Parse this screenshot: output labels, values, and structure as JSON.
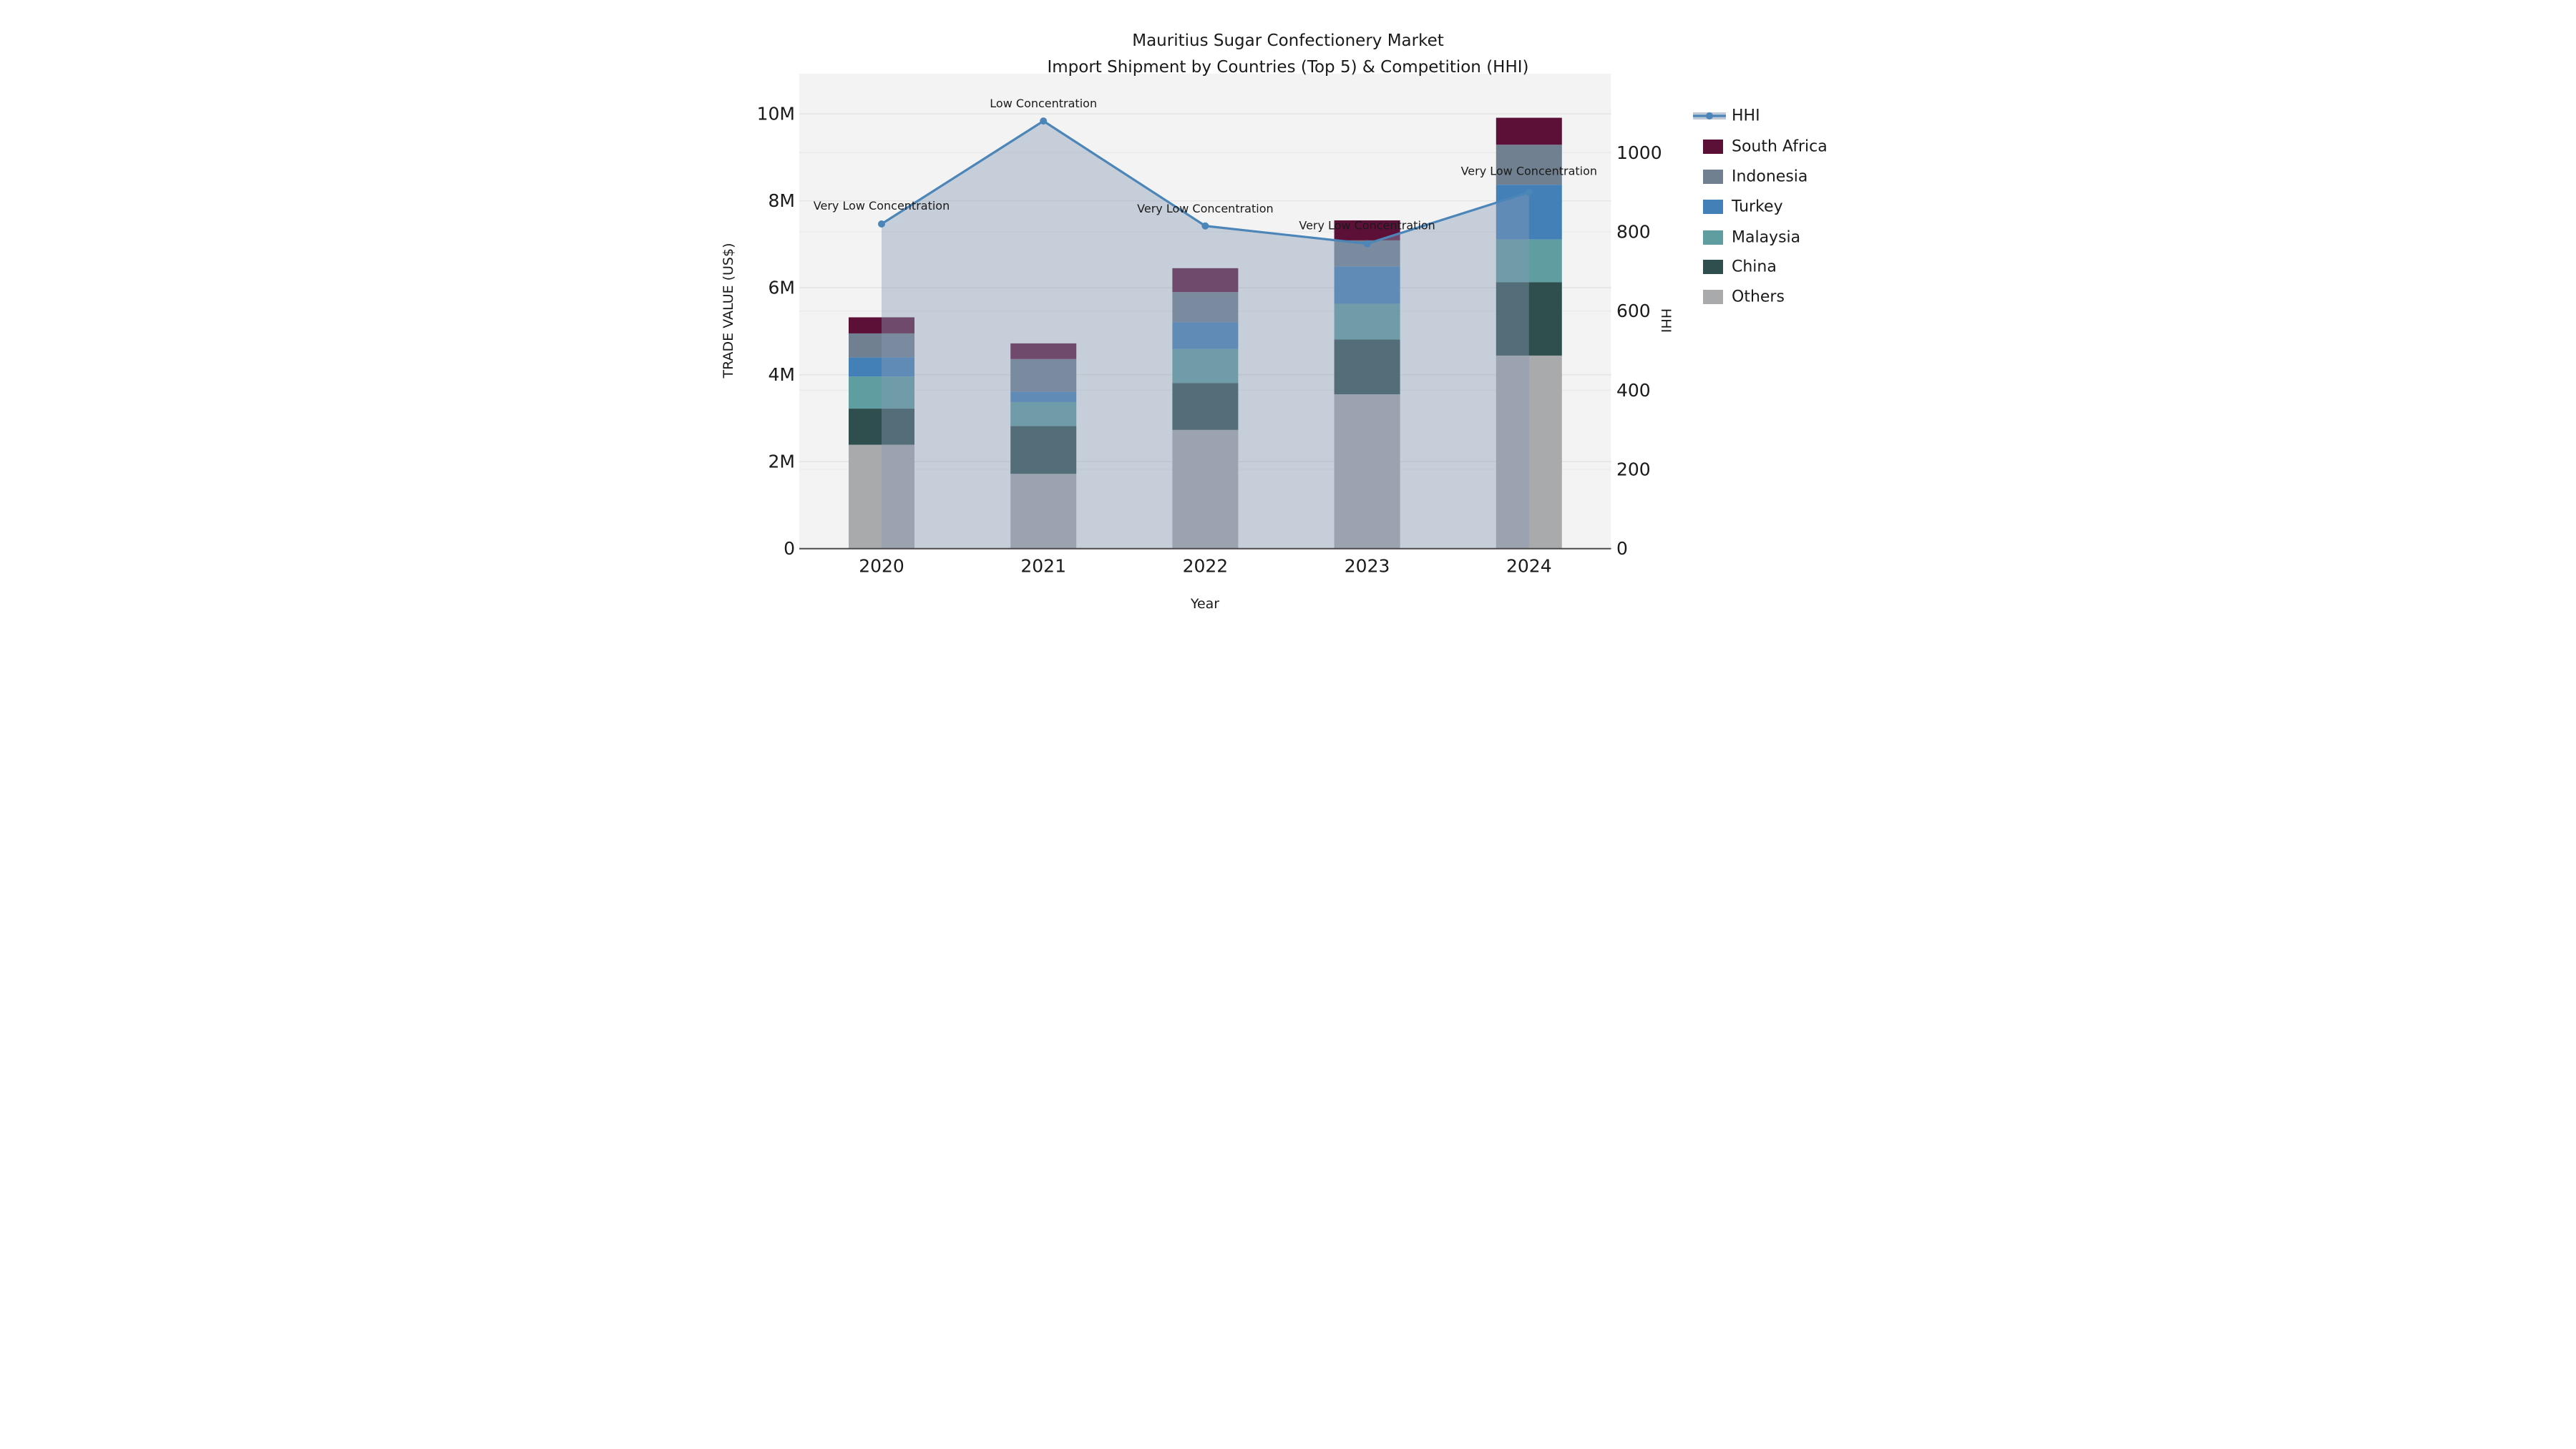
{
  "title": {
    "line1": "Mauritius Sugar Confectionery Market",
    "line2": "Import Shipment by Countries (Top 5) & Competition (HHI)"
  },
  "axes": {
    "x": {
      "label": "Year",
      "categories": [
        "2020",
        "2021",
        "2022",
        "2023",
        "2024"
      ]
    },
    "y_left": {
      "label": "TRADE VALUE (US$)",
      "tick_labels": [
        "0",
        "2M",
        "4M",
        "6M",
        "8M",
        "10M"
      ],
      "tick_values_millions": [
        0,
        2,
        4,
        6,
        8,
        10
      ],
      "range_millions": [
        0,
        10.93
      ]
    },
    "y_right": {
      "label": "HHI",
      "tick_labels": [
        "0",
        "200",
        "400",
        "600",
        "800",
        "1000"
      ],
      "tick_values": [
        0,
        200,
        400,
        600,
        800,
        1000
      ],
      "range": [
        0,
        1200
      ]
    }
  },
  "legend": {
    "position": "right",
    "items": [
      {
        "label": "HHI",
        "type": "line",
        "color": "#4c86b9"
      },
      {
        "label": "South Africa",
        "type": "swatch",
        "color": "#5d1037"
      },
      {
        "label": "Indonesia",
        "type": "swatch",
        "color": "#708090"
      },
      {
        "label": "Turkey",
        "type": "swatch",
        "color": "#4380b7"
      },
      {
        "label": "Malaysia",
        "type": "swatch",
        "color": "#5f9ea0"
      },
      {
        "label": "China",
        "type": "swatch",
        "color": "#2f4f4f"
      },
      {
        "label": "Others",
        "type": "swatch",
        "color": "#a9aaac"
      }
    ]
  },
  "chart_data": {
    "type": "bar+line",
    "categories": [
      "2020",
      "2021",
      "2022",
      "2023",
      "2024"
    ],
    "bar_unit": "million US$ (stacked, left axis)",
    "series": [
      {
        "name": "Others",
        "color": "#a9aaac",
        "values": [
          2.39,
          1.72,
          2.73,
          3.55,
          4.44
        ]
      },
      {
        "name": "China",
        "color": "#2f4f4f",
        "values": [
          0.83,
          1.1,
          1.08,
          1.26,
          1.69
        ]
      },
      {
        "name": "Malaysia",
        "color": "#5f9ea0",
        "values": [
          0.74,
          0.55,
          0.78,
          0.82,
          0.98
        ]
      },
      {
        "name": "Turkey",
        "color": "#4380b7",
        "values": [
          0.44,
          0.24,
          0.62,
          0.86,
          1.26
        ]
      },
      {
        "name": "Indonesia",
        "color": "#708090",
        "values": [
          0.55,
          0.75,
          0.69,
          0.6,
          0.92
        ]
      },
      {
        "name": "South Africa",
        "color": "#5d1037",
        "values": [
          0.37,
          0.36,
          0.55,
          0.46,
          0.62
        ]
      }
    ],
    "bar_totals_millions": [
      5.32,
      4.72,
      6.45,
      7.55,
      9.91
    ],
    "line_series": {
      "name": "HHI",
      "axis": "right",
      "color": "#4c86b9",
      "fill_color": "#899bb4",
      "fill_opacity": 0.42,
      "values": [
        820,
        1080,
        815,
        770,
        900
      ]
    },
    "annotations": [
      "Very Low Concentration",
      "Low Concentration",
      "Very Low Concentration",
      "Very Low Concentration",
      "Very Low Concentration"
    ],
    "grid": true,
    "legend_position": "right"
  },
  "colors": {
    "plot_bg": "#f3f3f3",
    "grid_major": "#e4e4e4",
    "grid_minor": "#e9e9e9",
    "axis_line": "#4a4a4a",
    "text": "#1a1a1a"
  }
}
